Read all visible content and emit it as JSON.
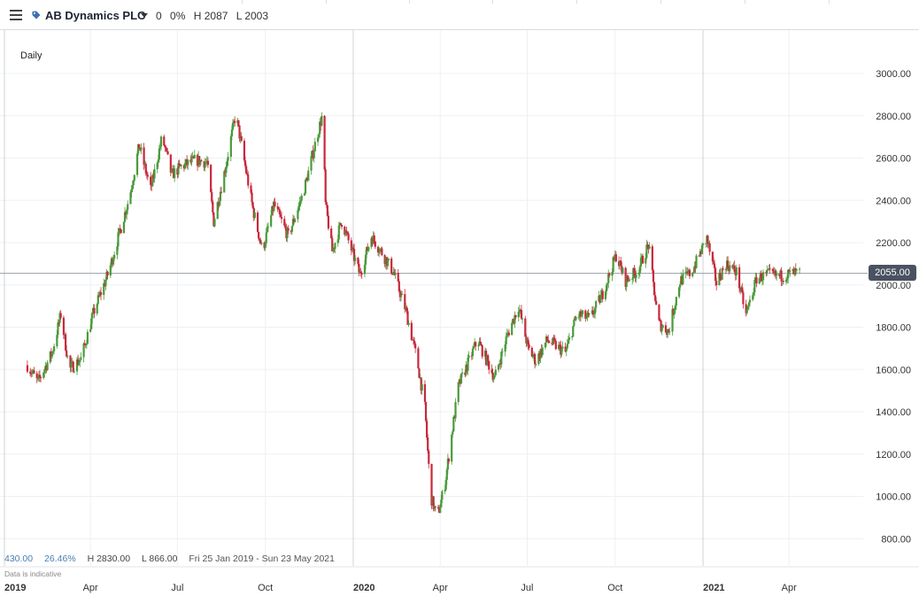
{
  "toolbar": {
    "instrument_name": "AB Dynamics PLC",
    "change": "0",
    "change_pct": "0%",
    "high": "H 2087",
    "low": "L 2003"
  },
  "chart_header": {
    "interval": "Daily"
  },
  "stats": {
    "change_value": "430.00",
    "change_pct": "26.46%",
    "high": "H 2830.00",
    "low": "L 866.00",
    "range": "Fri 25 Jan 2019 - Sun 23 May 2021",
    "disclaimer": "Data is indicative"
  },
  "current_price": "2055.00",
  "colors": {
    "up": "#4a9a3a",
    "down": "#c8283c",
    "accent": "#4a7fb3",
    "price_tag": "#4a5261"
  },
  "chart_data": {
    "type": "candlestick",
    "title": "",
    "xlabel": "",
    "ylabel": "",
    "ylim": [
      700,
      3100
    ],
    "x_range": [
      "2019-01-25",
      "2021-05-23"
    ],
    "y_ticks": [
      "3000.00",
      "2800.00",
      "2600.00",
      "2400.00",
      "2200.00",
      "2000.00",
      "1800.00",
      "1600.00",
      "1400.00",
      "1200.00",
      "1000.00",
      "800.00"
    ],
    "x_ticks": [
      {
        "label": "2019",
        "date": "2019-01-01",
        "major": true
      },
      {
        "label": "Apr",
        "date": "2019-04-01",
        "major": false
      },
      {
        "label": "Jul",
        "date": "2019-07-01",
        "major": false
      },
      {
        "label": "Oct",
        "date": "2019-10-01",
        "major": false
      },
      {
        "label": "2020",
        "date": "2020-01-01",
        "major": true
      },
      {
        "label": "Apr",
        "date": "2020-04-01",
        "major": false
      },
      {
        "label": "Jul",
        "date": "2020-07-01",
        "major": false
      },
      {
        "label": "Oct",
        "date": "2020-10-01",
        "major": false
      },
      {
        "label": "2021",
        "date": "2021-01-01",
        "major": true
      },
      {
        "label": "Apr",
        "date": "2021-04-01",
        "major": false
      }
    ],
    "close_path": [
      [
        "2019-01-25",
        1620
      ],
      [
        "2019-02-05",
        1540
      ],
      [
        "2019-02-20",
        1680
      ],
      [
        "2019-03-01",
        1860
      ],
      [
        "2019-03-10",
        1600
      ],
      [
        "2019-03-22",
        1650
      ],
      [
        "2019-04-05",
        1880
      ],
      [
        "2019-04-20",
        2060
      ],
      [
        "2019-05-01",
        2240
      ],
      [
        "2019-05-12",
        2420
      ],
      [
        "2019-05-22",
        2660
      ],
      [
        "2019-06-03",
        2450
      ],
      [
        "2019-06-15",
        2700
      ],
      [
        "2019-06-25",
        2520
      ],
      [
        "2019-07-05",
        2560
      ],
      [
        "2019-07-20",
        2590
      ],
      [
        "2019-08-01",
        2580
      ],
      [
        "2019-08-08",
        2300
      ],
      [
        "2019-08-20",
        2550
      ],
      [
        "2019-08-31",
        2810
      ],
      [
        "2019-09-10",
        2560
      ],
      [
        "2019-09-18",
        2360
      ],
      [
        "2019-09-28",
        2160
      ],
      [
        "2019-10-10",
        2380
      ],
      [
        "2019-10-25",
        2230
      ],
      [
        "2019-11-10",
        2440
      ],
      [
        "2019-11-25",
        2720
      ],
      [
        "2019-11-30",
        2810
      ],
      [
        "2019-12-03",
        2380
      ],
      [
        "2019-12-10",
        2160
      ],
      [
        "2019-12-20",
        2300
      ],
      [
        "2020-01-08",
        2050
      ],
      [
        "2020-01-20",
        2230
      ],
      [
        "2020-01-30",
        2160
      ],
      [
        "2020-02-12",
        2060
      ],
      [
        "2020-02-25",
        1880
      ],
      [
        "2020-03-08",
        1640
      ],
      [
        "2020-03-16",
        1420
      ],
      [
        "2020-03-22",
        1000
      ],
      [
        "2020-03-29",
        900
      ],
      [
        "2020-04-06",
        1060
      ],
      [
        "2020-04-20",
        1520
      ],
      [
        "2020-05-10",
        1740
      ],
      [
        "2020-05-28",
        1560
      ],
      [
        "2020-06-10",
        1760
      ],
      [
        "2020-06-22",
        1900
      ],
      [
        "2020-07-02",
        1700
      ],
      [
        "2020-07-10",
        1640
      ],
      [
        "2020-07-22",
        1740
      ],
      [
        "2020-08-10",
        1680
      ],
      [
        "2020-08-22",
        1860
      ],
      [
        "2020-09-05",
        1840
      ],
      [
        "2020-09-18",
        1960
      ],
      [
        "2020-10-02",
        2140
      ],
      [
        "2020-10-12",
        2020
      ],
      [
        "2020-10-25",
        2070
      ],
      [
        "2020-11-05",
        2190
      ],
      [
        "2020-11-15",
        1820
      ],
      [
        "2020-11-26",
        1780
      ],
      [
        "2020-12-08",
        2020
      ],
      [
        "2020-12-20",
        2060
      ],
      [
        "2021-01-05",
        2220
      ],
      [
        "2021-01-15",
        2010
      ],
      [
        "2021-01-25",
        2100
      ],
      [
        "2021-02-05",
        2060
      ],
      [
        "2021-02-15",
        1860
      ],
      [
        "2021-02-26",
        2030
      ],
      [
        "2021-03-10",
        2050
      ],
      [
        "2021-03-22",
        2040
      ],
      [
        "2021-04-05",
        2055
      ],
      [
        "2021-04-12",
        2055
      ]
    ]
  }
}
